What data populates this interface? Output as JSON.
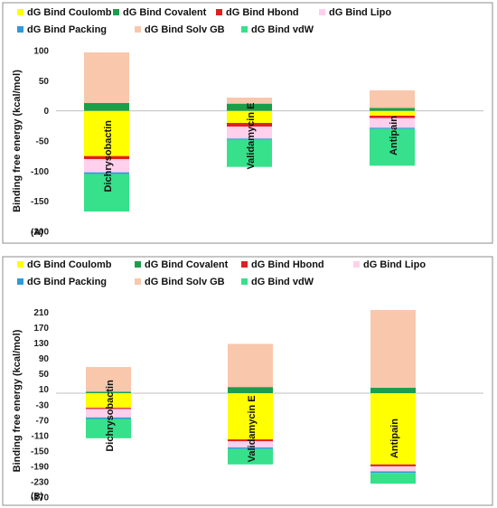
{
  "chart_data": [
    {
      "type": "bar",
      "stacked": true,
      "panel_label": "(A)",
      "ylabel": "Binding free energy (kcal/mol)",
      "ylim": [
        -200,
        100
      ],
      "yticks": [
        100,
        50,
        0,
        -50,
        -100,
        -150,
        -200
      ],
      "categories": [
        "Dichrysobactin",
        "Validamycin E",
        "Antipain"
      ],
      "series": [
        {
          "name": "dG Bind Coulomb",
          "color": "#ffff00",
          "values": [
            -75,
            -20,
            -8
          ]
        },
        {
          "name": "dG Bind Covalent",
          "color": "#1a9e4b",
          "values": [
            13,
            12,
            5
          ]
        },
        {
          "name": "dG Bind Hbond",
          "color": "#e02020",
          "values": [
            -5,
            -6,
            -4
          ]
        },
        {
          "name": "dG Bind Lipo",
          "color": "#ffd0ec",
          "values": [
            -22,
            -20,
            -16
          ]
        },
        {
          "name": "dG Bind Packing",
          "color": "#2f9ad8",
          "values": [
            -3,
            -2,
            -2
          ]
        },
        {
          "name": "dG Bind Solv GB",
          "color": "#f8c7ac",
          "values": [
            84,
            10,
            29
          ]
        },
        {
          "name": "dG Bind vdW",
          "color": "#37e08a",
          "values": [
            -62,
            -45,
            -61
          ]
        }
      ],
      "legend_position": "top",
      "grid": false
    },
    {
      "type": "bar",
      "stacked": true,
      "panel_label": "(B)",
      "ylabel": "Binding free energy (kcal/mol)",
      "ylim": [
        -270,
        230
      ],
      "yticks": [
        210,
        170,
        130,
        90,
        50,
        10,
        -30,
        -70,
        -110,
        -150,
        -190,
        -230,
        -270
      ],
      "categories": [
        "Dichrysobactin",
        "Validamycin E",
        "Antipain"
      ],
      "series": [
        {
          "name": "dG Bind Coulomb",
          "color": "#ffff00",
          "values": [
            -38,
            -120,
            -185
          ]
        },
        {
          "name": "dG Bind Covalent",
          "color": "#1a9e4b",
          "values": [
            4,
            16,
            14
          ]
        },
        {
          "name": "dG Bind Hbond",
          "color": "#e02020",
          "values": [
            -3,
            -5,
            -5
          ]
        },
        {
          "name": "dG Bind Lipo",
          "color": "#ffd0ec",
          "values": [
            -22,
            -16,
            -13
          ]
        },
        {
          "name": "dG Bind Packing",
          "color": "#2f9ad8",
          "values": [
            -4,
            -4,
            -4
          ]
        },
        {
          "name": "dG Bind Solv GB",
          "color": "#f8c7ac",
          "values": [
            64,
            112,
            202
          ]
        },
        {
          "name": "dG Bind vdW",
          "color": "#37e08a",
          "values": [
            -50,
            -40,
            -28
          ]
        }
      ],
      "legend_position": "top",
      "grid": false
    }
  ]
}
